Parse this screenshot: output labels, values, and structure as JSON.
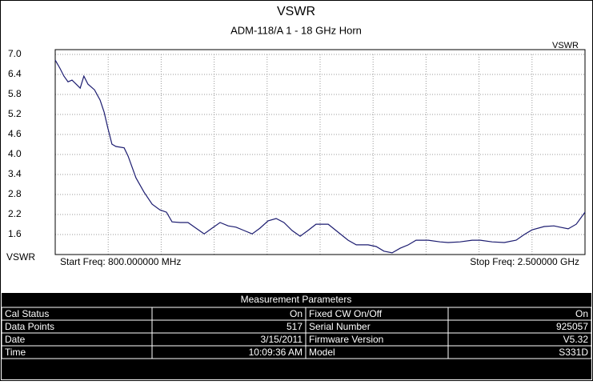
{
  "chart_data": {
    "type": "line",
    "title": "VSWR",
    "subtitle": "ADM-118/A 1 - 18 GHz Horn",
    "ylabel": "VSWR",
    "annotations": [
      "Start Freq: 800.000000 MHz",
      "Stop Freq: 2.500000 GHz"
    ],
    "xlim": [
      800,
      2500
    ],
    "ylim": [
      1.0,
      7.0
    ],
    "yticks": [
      {
        "value": 7.0,
        "label": "7.0"
      },
      6.4,
      5.8,
      5.2,
      4.6,
      {
        "value": 4.0,
        "label": "4.0"
      },
      3.4,
      2.8,
      2.2,
      1.6
    ],
    "grid": true,
    "x": [
      800,
      815,
      828,
      841,
      854,
      867,
      880,
      892,
      905,
      926,
      944,
      957,
      969,
      982,
      995,
      1021,
      1034,
      1059,
      1085,
      1111,
      1136,
      1157,
      1175,
      1201,
      1226,
      1252,
      1278,
      1303,
      1329,
      1355,
      1380,
      1406,
      1432,
      1457,
      1483,
      1509,
      1534,
      1560,
      1586,
      1611,
      1637,
      1676,
      1701,
      1740,
      1766,
      1804,
      1830,
      1855,
      1881,
      1907,
      1933,
      1958,
      1997,
      2035,
      2061,
      2099,
      2138,
      2164,
      2202,
      2241,
      2279,
      2305,
      2330,
      2369,
      2400,
      2420,
      2446,
      2472,
      2500
    ],
    "series": [
      {
        "name": "VSWR",
        "color": "#1c1c70",
        "values": [
          6.83,
          6.59,
          6.35,
          6.18,
          6.23,
          6.11,
          5.99,
          6.35,
          6.11,
          5.94,
          5.63,
          5.27,
          4.79,
          4.31,
          4.24,
          4.2,
          3.95,
          3.3,
          2.87,
          2.51,
          2.34,
          2.27,
          1.98,
          1.96,
          1.96,
          1.79,
          1.62,
          1.79,
          1.96,
          1.86,
          1.82,
          1.72,
          1.62,
          1.79,
          2.01,
          2.08,
          1.96,
          1.72,
          1.55,
          1.72,
          1.91,
          1.91,
          1.72,
          1.43,
          1.29,
          1.29,
          1.24,
          1.1,
          1.05,
          1.19,
          1.29,
          1.43,
          1.43,
          1.38,
          1.36,
          1.38,
          1.43,
          1.43,
          1.38,
          1.36,
          1.43,
          1.6,
          1.74,
          1.84,
          1.86,
          1.82,
          1.77,
          1.91,
          2.27
        ]
      }
    ]
  },
  "table": {
    "title": "Measurement Parameters",
    "rows": [
      [
        "Cal Status",
        "On",
        "Fixed CW On/Off",
        "On"
      ],
      [
        "Data Points",
        "517",
        "Serial Number",
        "925057"
      ],
      [
        "Date",
        "3/15/2011",
        "Firmware Version",
        "V5.32"
      ],
      [
        "Time",
        "10:09:36 AM",
        "Model",
        "S331D"
      ]
    ]
  }
}
